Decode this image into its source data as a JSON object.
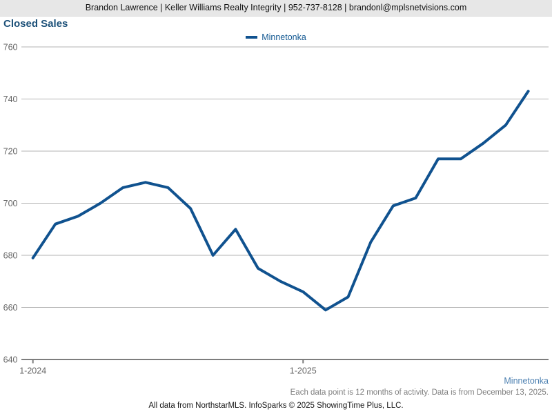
{
  "header": {
    "text": "Brandon Lawrence | Keller Williams Realty Integrity | 952-737-8128 | brandonl@mplsnetvisions.com"
  },
  "title": "Closed Sales",
  "legend": {
    "label": "Minnetonka"
  },
  "chart_data": {
    "type": "line",
    "title": "Closed Sales",
    "xlabel": "",
    "ylabel": "",
    "ylim": [
      640,
      760
    ],
    "grid": "horizontal",
    "legend_position": "top-center",
    "y_ticks": [
      640,
      660,
      680,
      700,
      720,
      740,
      760
    ],
    "x_ticks": [
      {
        "label": "1-2024",
        "month_index": 0
      },
      {
        "label": "1-2025",
        "month_index": 12
      }
    ],
    "categories": [
      "1-2024",
      "2-2024",
      "3-2024",
      "4-2024",
      "5-2024",
      "6-2024",
      "7-2024",
      "8-2024",
      "9-2024",
      "10-2024",
      "11-2024",
      "12-2024",
      "1-2025",
      "2-2025",
      "3-2025",
      "4-2025",
      "5-2025",
      "6-2025",
      "7-2025",
      "8-2025",
      "9-2025",
      "10-2025",
      "11-2025"
    ],
    "series": [
      {
        "name": "Minnetonka",
        "color": "#10528f",
        "values": [
          679,
          692,
          695,
          700,
          706,
          708,
          706,
          698,
          680,
          690,
          675,
          670,
          666,
          659,
          664,
          685,
          699,
          702,
          717,
          717,
          723,
          730,
          743
        ]
      }
    ]
  },
  "footer": {
    "series_label": "Minnetonka",
    "note": "Each data point is 12 months of activity. Data is from December 13, 2025.",
    "attribution": "All data from NorthstarMLS. InfoSparks © 2025 ShowingTime Plus, LLC."
  },
  "colors": {
    "line": "#10528f",
    "title_text": "#1d5179",
    "legend_text": "#155a93",
    "bottom_series_label": "#4b7fb0",
    "gridline": "#b3b3b3",
    "axis": "#7d7d7d",
    "axis_label_text": "#666666",
    "header_background": "#e7e7e7"
  }
}
